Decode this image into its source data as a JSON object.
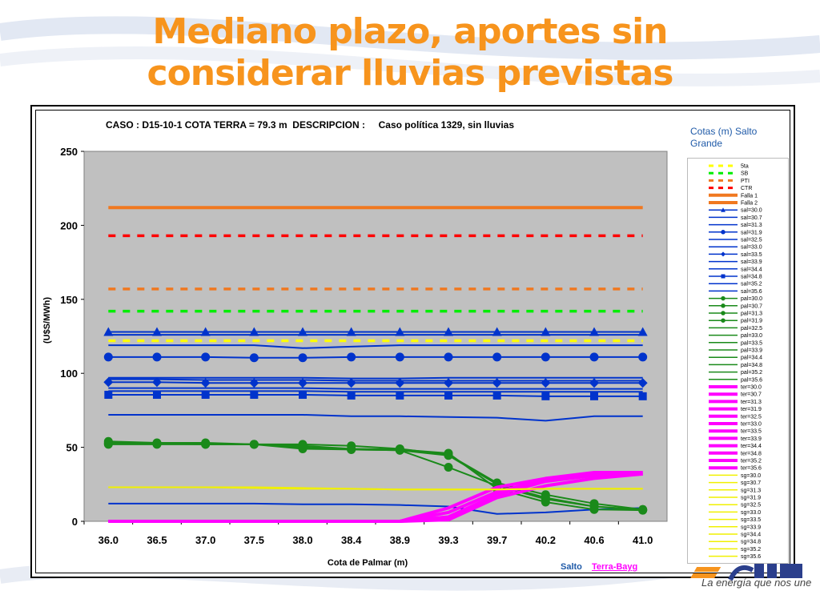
{
  "slide": {
    "title": "Mediano plazo, aportes sin considerar lluvias previstas",
    "legend_heading": "Cotas (m) Salto Grande",
    "label_salto": "Salto",
    "label_terra": "Terra-Bayg",
    "tagline": "La energía que nos une",
    "colors": {
      "title": "#f7941d",
      "plot_bg": "#c0c0c0"
    }
  },
  "chart_data": {
    "type": "line",
    "title": "CASO : D15-10-1 COTA TERRA = 79.3 m  DESCRIPCION :     Caso política 1329, sin lluvias",
    "xlabel": "Cota de Palmar (m)",
    "ylabel": "(U$S/MWh)",
    "categories": [
      "36.0",
      "36.5",
      "37.0",
      "37.5",
      "38.0",
      "38.4",
      "38.9",
      "39.3",
      "39.7",
      "40.2",
      "40.6",
      "41.0"
    ],
    "ylim": [
      0,
      250
    ],
    "yticks": [
      0,
      50,
      100,
      150,
      200,
      250
    ],
    "grid": false,
    "legend_position": "right",
    "series": [
      {
        "name": "5ta",
        "color": "#ffff00",
        "style": "dash",
        "values": [
          122,
          122,
          122,
          122,
          122,
          122,
          122,
          122,
          122,
          122,
          122,
          122
        ]
      },
      {
        "name": "SB",
        "color": "#00ee00",
        "style": "dash",
        "values": [
          142,
          142,
          142,
          142,
          142,
          142,
          142,
          142,
          142,
          142,
          142,
          142
        ]
      },
      {
        "name": "PTI",
        "color": "#f07820",
        "style": "dash",
        "values": [
          157,
          157,
          157,
          157,
          157,
          157,
          157,
          157,
          157,
          157,
          157,
          157
        ]
      },
      {
        "name": "CTR",
        "color": "#ff0000",
        "style": "dash",
        "values": [
          193,
          193,
          193,
          193,
          193,
          193,
          193,
          193,
          193,
          193,
          193,
          193
        ]
      },
      {
        "name": "Falla 1",
        "color": "#f07820",
        "style": "thick",
        "values": [
          212,
          212,
          212,
          212,
          212,
          212,
          212,
          212,
          212,
          212,
          212,
          212
        ]
      },
      {
        "name": "Falla 2",
        "color": "#f07820",
        "style": "thick",
        "values": [
          null,
          null,
          null,
          null,
          null,
          null,
          null,
          null,
          null,
          null,
          null,
          null
        ]
      },
      {
        "name": "sal=30.0",
        "color": "#0033cc",
        "style": "line",
        "marker": "triangle",
        "values": [
          128,
          128,
          128,
          128,
          128,
          128,
          128,
          128,
          128,
          128,
          128,
          128
        ]
      },
      {
        "name": "sal=30.7",
        "color": "#0033cc",
        "style": "line",
        "values": [
          126,
          126,
          126,
          126,
          126,
          126,
          126,
          126,
          126,
          126,
          126,
          126
        ]
      },
      {
        "name": "sal=31.3",
        "color": "#0033cc",
        "style": "line",
        "values": [
          119,
          119,
          119,
          119,
          117,
          118,
          119,
          119,
          119,
          119,
          119,
          119
        ]
      },
      {
        "name": "sal=31.9",
        "color": "#0033cc",
        "style": "line",
        "marker": "circle",
        "values": [
          111,
          111,
          111,
          110.5,
          110.5,
          111,
          111,
          111,
          111,
          111,
          111,
          111
        ]
      },
      {
        "name": "sal=32.5",
        "color": "#0033cc",
        "style": "line",
        "values": [
          97,
          97,
          97,
          97,
          97,
          96.5,
          96.5,
          97,
          97,
          97,
          97,
          97
        ]
      },
      {
        "name": "sal=33.0",
        "color": "#0033cc",
        "style": "line",
        "values": [
          96,
          96,
          95.5,
          95.5,
          95.5,
          95,
          95,
          95,
          95,
          95,
          95,
          95
        ]
      },
      {
        "name": "sal=33.5",
        "color": "#0033cc",
        "style": "line",
        "marker": "diamond",
        "values": [
          94,
          94,
          93.5,
          93.5,
          93.5,
          93.5,
          93.5,
          93.5,
          93.5,
          93.5,
          93.5,
          93.5
        ]
      },
      {
        "name": "sal=33.9",
        "color": "#0033cc",
        "style": "line",
        "values": [
          90,
          90,
          90,
          90,
          90,
          89.5,
          89.5,
          89.5,
          89.5,
          89.5,
          89.5,
          89.5
        ]
      },
      {
        "name": "sal=34.4",
        "color": "#0033cc",
        "style": "line",
        "values": [
          88,
          88,
          88,
          88,
          88,
          87.5,
          87.5,
          87.5,
          87.5,
          87.5,
          87.5,
          87.5
        ]
      },
      {
        "name": "sal=34.8",
        "color": "#0033cc",
        "style": "line",
        "marker": "square",
        "values": [
          85.5,
          85.5,
          85.5,
          85.5,
          85.5,
          85,
          85,
          85,
          85,
          84.5,
          84.5,
          84.5
        ]
      },
      {
        "name": "sal=35.2",
        "color": "#0033cc",
        "style": "line",
        "values": [
          72,
          72,
          72,
          72,
          72,
          71,
          71,
          70.5,
          70,
          68,
          71,
          71
        ]
      },
      {
        "name": "sal=35.6",
        "color": "#0033cc",
        "style": "line",
        "values": [
          12,
          12,
          12,
          12,
          11.5,
          11.5,
          11,
          10,
          5,
          6,
          8,
          9
        ]
      },
      {
        "name": "pal=30.0",
        "color": "#1a8a1a",
        "style": "line",
        "marker": "circle",
        "values": [
          54,
          53,
          53,
          52,
          51,
          49,
          48.5,
          46,
          22,
          13,
          8,
          7.5
        ]
      },
      {
        "name": "pal=30.7",
        "color": "#1a8a1a",
        "style": "line",
        "marker": "circle",
        "values": [
          53,
          52.5,
          52.5,
          52,
          52,
          51,
          49,
          45,
          26,
          18,
          12,
          8
        ]
      },
      {
        "name": "pal=31.3",
        "color": "#1a8a1a",
        "style": "line",
        "marker": "circle",
        "values": [
          52,
          52,
          52,
          52,
          49,
          48.5,
          48,
          36.5,
          24,
          15,
          10,
          7.5
        ]
      },
      {
        "name": "pal=31.9",
        "color": "#1a8a1a",
        "style": "line",
        "marker": "circle",
        "values": [
          52.5,
          52.5,
          52,
          52,
          50,
          48.5,
          48,
          44.5,
          25,
          16,
          10,
          8
        ]
      },
      {
        "name": "pal=32.5",
        "color": "#1a8a1a",
        "style": "line",
        "values": [
          null,
          null,
          null,
          null,
          null,
          null,
          null,
          null,
          null,
          null,
          null,
          null
        ]
      },
      {
        "name": "pal=33.0",
        "color": "#1a8a1a",
        "style": "line",
        "values": [
          null,
          null,
          null,
          null,
          null,
          null,
          null,
          null,
          null,
          null,
          null,
          null
        ]
      },
      {
        "name": "pal=33.5",
        "color": "#1a8a1a",
        "style": "line",
        "values": [
          null,
          null,
          null,
          null,
          null,
          null,
          null,
          null,
          null,
          null,
          null,
          null
        ]
      },
      {
        "name": "pal=33.9",
        "color": "#1a8a1a",
        "style": "line",
        "values": [
          null,
          null,
          null,
          null,
          null,
          null,
          null,
          null,
          null,
          null,
          null,
          null
        ]
      },
      {
        "name": "pal=34.4",
        "color": "#1a8a1a",
        "style": "line",
        "values": [
          null,
          null,
          null,
          null,
          null,
          null,
          null,
          null,
          null,
          null,
          null,
          null
        ]
      },
      {
        "name": "pal=34.8",
        "color": "#1a8a1a",
        "style": "line",
        "values": [
          null,
          null,
          null,
          null,
          null,
          null,
          null,
          null,
          null,
          null,
          null,
          null
        ]
      },
      {
        "name": "pal=35.2",
        "color": "#1a8a1a",
        "style": "line",
        "values": [
          null,
          null,
          null,
          null,
          null,
          null,
          null,
          null,
          null,
          null,
          null,
          null
        ]
      },
      {
        "name": "pal=35.6",
        "color": "#1a8a1a",
        "style": "line",
        "values": [
          null,
          null,
          null,
          null,
          null,
          null,
          null,
          null,
          null,
          null,
          null,
          null
        ]
      },
      {
        "name": "ter=30.0",
        "color": "#ff00ff",
        "style": "thick",
        "values": [
          0,
          0,
          0,
          0,
          0,
          0,
          0,
          9,
          23,
          29,
          33,
          33
        ]
      },
      {
        "name": "ter=30.7",
        "color": "#ff00ff",
        "style": "thick",
        "values": [
          0,
          0,
          0,
          0,
          0,
          0,
          0,
          6,
          20,
          28,
          32,
          33
        ]
      },
      {
        "name": "ter=31.3",
        "color": "#ff00ff",
        "style": "thick",
        "values": [
          0,
          0,
          0,
          0,
          0,
          0,
          0,
          3,
          18,
          27,
          31,
          32
        ]
      },
      {
        "name": "ter=31.9",
        "color": "#ff00ff",
        "style": "thick",
        "values": [
          0,
          0,
          0,
          0,
          0,
          0,
          0,
          1,
          16,
          24,
          29,
          32
        ]
      },
      {
        "name": "ter=32.5",
        "color": "#ff00ff",
        "style": "thick",
        "values": [
          null,
          null,
          null,
          null,
          null,
          null,
          null,
          null,
          null,
          null,
          null,
          null
        ]
      },
      {
        "name": "ter=33.0",
        "color": "#ff00ff",
        "style": "thick",
        "values": [
          null,
          null,
          null,
          null,
          null,
          null,
          null,
          null,
          null,
          null,
          null,
          null
        ]
      },
      {
        "name": "ter=33.5",
        "color": "#ff00ff",
        "style": "thick",
        "values": [
          null,
          null,
          null,
          null,
          null,
          null,
          null,
          null,
          null,
          null,
          null,
          null
        ]
      },
      {
        "name": "ter=33.9",
        "color": "#ff00ff",
        "style": "thick",
        "values": [
          null,
          null,
          null,
          null,
          null,
          null,
          null,
          null,
          null,
          null,
          null,
          null
        ]
      },
      {
        "name": "ter=34.4",
        "color": "#ff00ff",
        "style": "thick",
        "values": [
          null,
          null,
          null,
          null,
          null,
          null,
          null,
          null,
          null,
          null,
          null,
          null
        ]
      },
      {
        "name": "ter=34.8",
        "color": "#ff00ff",
        "style": "thick",
        "values": [
          null,
          null,
          null,
          null,
          null,
          null,
          null,
          null,
          null,
          null,
          null,
          null
        ]
      },
      {
        "name": "ter=35.2",
        "color": "#ff00ff",
        "style": "thick",
        "values": [
          null,
          null,
          null,
          null,
          null,
          null,
          null,
          null,
          null,
          null,
          null,
          null
        ]
      },
      {
        "name": "ter=35.6",
        "color": "#ff00ff",
        "style": "thick",
        "values": [
          null,
          null,
          null,
          null,
          null,
          null,
          null,
          null,
          null,
          null,
          null,
          null
        ]
      },
      {
        "name": "sg=30.0",
        "color": "#f0f000",
        "style": "line",
        "values": [
          23,
          23,
          23,
          23,
          22.5,
          22,
          21.5,
          21.5,
          21.5,
          22,
          22,
          22
        ]
      },
      {
        "name": "sg=30.7",
        "color": "#f0f000",
        "style": "line",
        "values": [
          23,
          23,
          23,
          22.5,
          22,
          22,
          21.5,
          21.5,
          21.5,
          22,
          22,
          22
        ]
      },
      {
        "name": "sg=31.3",
        "color": "#f0f000",
        "style": "line",
        "values": [
          null,
          null,
          null,
          null,
          null,
          null,
          null,
          null,
          null,
          null,
          null,
          null
        ]
      },
      {
        "name": "sg=31.9",
        "color": "#f0f000",
        "style": "line",
        "values": [
          null,
          null,
          null,
          null,
          null,
          null,
          null,
          null,
          null,
          null,
          null,
          null
        ]
      },
      {
        "name": "sg=32.5",
        "color": "#f0f000",
        "style": "line",
        "values": [
          null,
          null,
          null,
          null,
          null,
          null,
          null,
          null,
          null,
          null,
          null,
          null
        ]
      },
      {
        "name": "sg=33.0",
        "color": "#f0f000",
        "style": "line",
        "values": [
          null,
          null,
          null,
          null,
          null,
          null,
          null,
          null,
          null,
          null,
          null,
          null
        ]
      },
      {
        "name": "sg=33.5",
        "color": "#f0f000",
        "style": "line",
        "values": [
          null,
          null,
          null,
          null,
          null,
          null,
          null,
          null,
          null,
          null,
          null,
          null
        ]
      },
      {
        "name": "sg=33.9",
        "color": "#f0f000",
        "style": "line",
        "values": [
          null,
          null,
          null,
          null,
          null,
          null,
          null,
          null,
          null,
          null,
          null,
          null
        ]
      },
      {
        "name": "sg=34.4",
        "color": "#f0f000",
        "style": "line",
        "values": [
          null,
          null,
          null,
          null,
          null,
          null,
          null,
          null,
          null,
          null,
          null,
          null
        ]
      },
      {
        "name": "sg=34.8",
        "color": "#f0f000",
        "style": "line",
        "values": [
          null,
          null,
          null,
          null,
          null,
          null,
          null,
          null,
          null,
          null,
          null,
          null
        ]
      },
      {
        "name": "sg=35.2",
        "color": "#f0f000",
        "style": "line",
        "values": [
          null,
          null,
          null,
          null,
          null,
          null,
          null,
          null,
          null,
          null,
          null,
          null
        ]
      },
      {
        "name": "sg=35.6",
        "color": "#f0f000",
        "style": "line",
        "values": [
          null,
          null,
          null,
          null,
          null,
          null,
          null,
          null,
          null,
          null,
          null,
          null
        ]
      }
    ]
  }
}
